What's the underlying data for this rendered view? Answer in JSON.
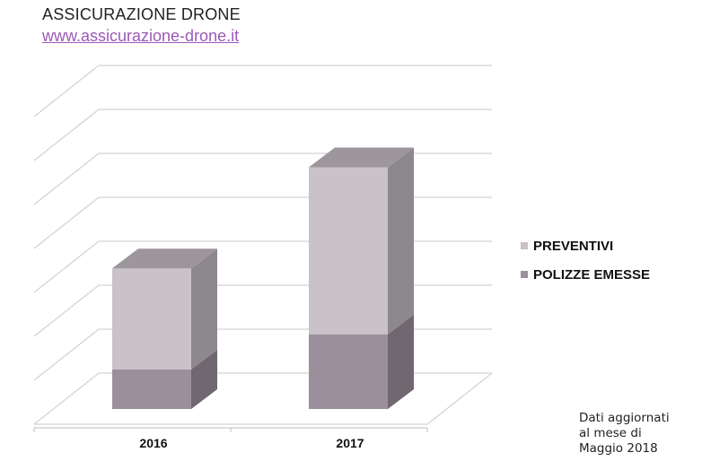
{
  "header": {
    "title": "ASSICURAZIONE DRONE",
    "link": "www.assicurazione-drone.it"
  },
  "note": {
    "lines": [
      "Dati aggiornati",
      "al mese di",
      "Maggio 2018"
    ]
  },
  "colors": {
    "preventivi": "#c9c2c9",
    "polizze": "#9b8f9b",
    "grid": "#d4d4d4",
    "link": "#9b59b6"
  },
  "chart_data": {
    "type": "bar",
    "stacked": true,
    "style": "3d",
    "categories": [
      "2016",
      "2017"
    ],
    "series": [
      {
        "name": "POLIZZE EMESSE",
        "values": [
          0.9,
          1.7
        ]
      },
      {
        "name": "PREVENTIVI",
        "values": [
          2.3,
          3.8
        ]
      }
    ],
    "ylim": [
      0,
      7
    ],
    "grid": true,
    "legend": "right",
    "title": "",
    "xlabel": "",
    "ylabel": ""
  }
}
